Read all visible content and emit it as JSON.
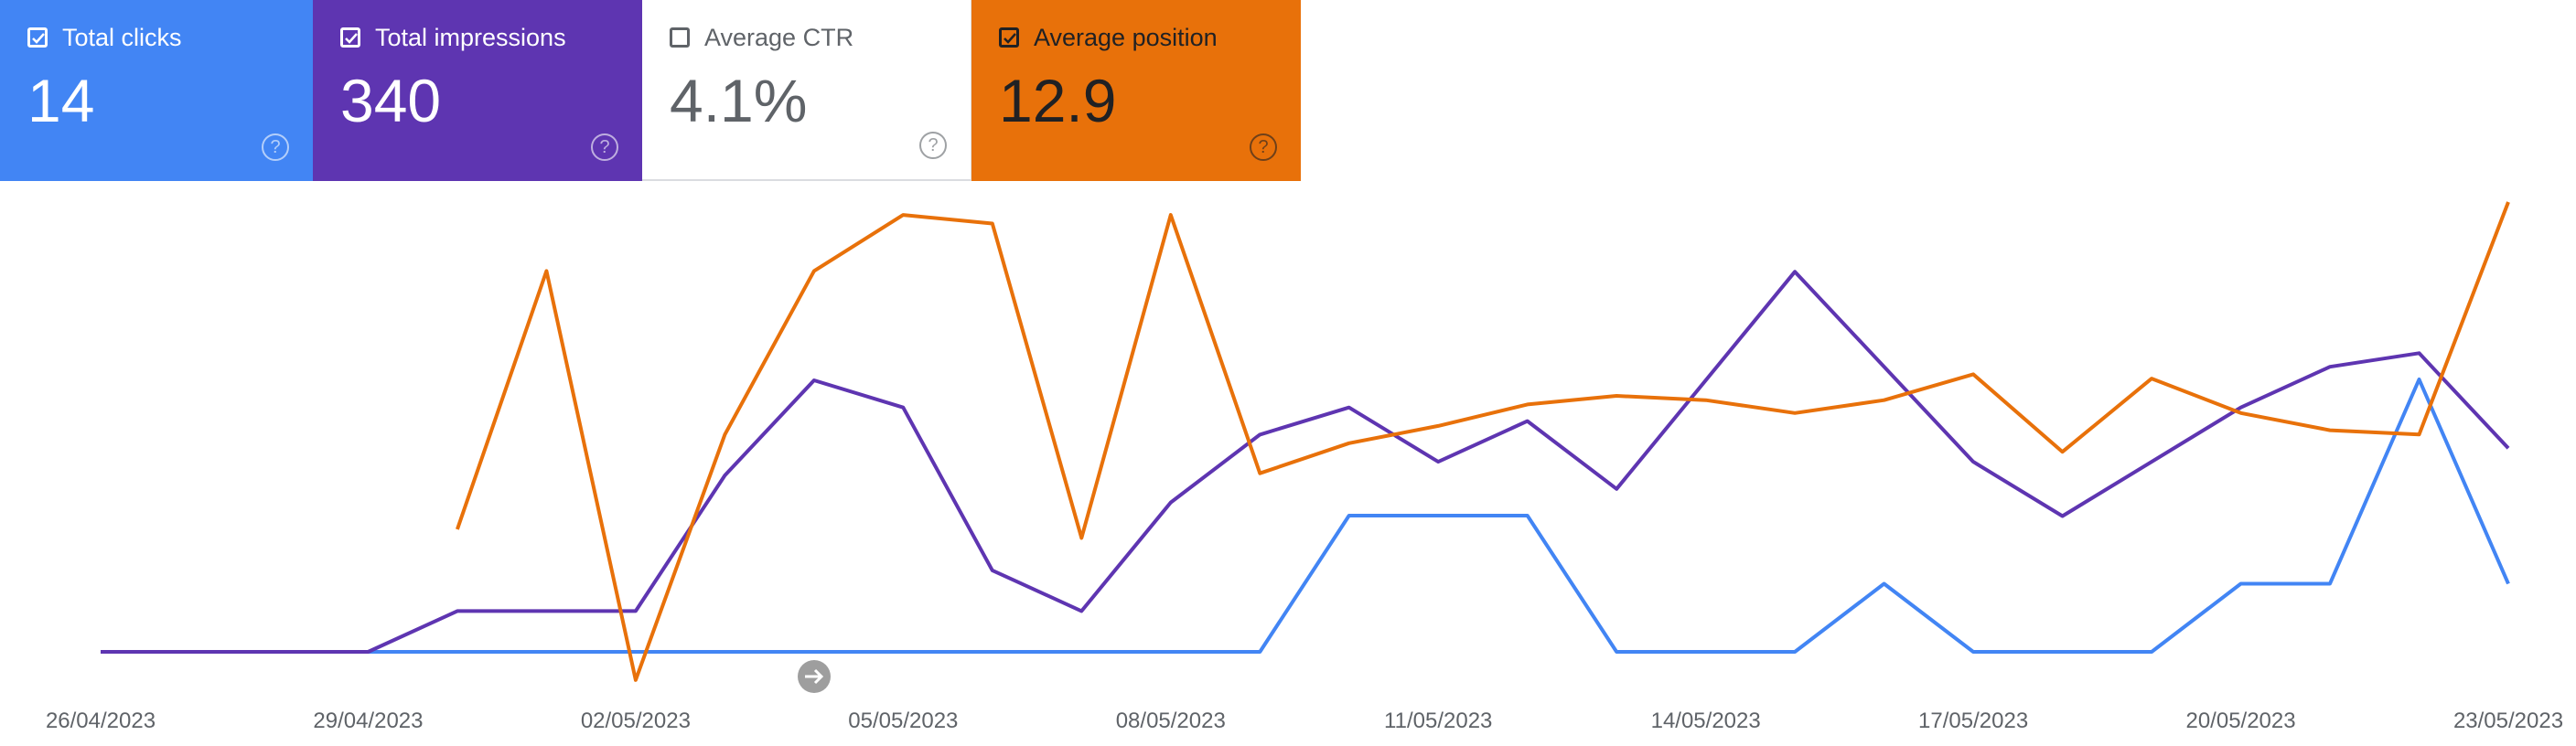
{
  "cards": [
    {
      "label": "Total clicks",
      "value": "14",
      "checked": true,
      "help": "?"
    },
    {
      "label": "Total impressions",
      "value": "340",
      "checked": true,
      "help": "?"
    },
    {
      "label": "Average CTR",
      "value": "4.1%",
      "checked": false,
      "help": "?"
    },
    {
      "label": "Average position",
      "value": "12.9",
      "checked": true,
      "help": "?"
    }
  ],
  "colors": {
    "clicks": "#4285f4",
    "impressions": "#5e35b1",
    "ctr": "#ffffff",
    "position": "#e8710a"
  },
  "annotation_icon": "arrow-right-icon",
  "chart_data": {
    "type": "line",
    "x": [
      "26/04/2023",
      "27/04/2023",
      "28/04/2023",
      "29/04/2023",
      "30/04/2023",
      "01/05/2023",
      "02/05/2023",
      "03/05/2023",
      "04/05/2023",
      "05/05/2023",
      "06/05/2023",
      "07/05/2023",
      "08/05/2023",
      "09/05/2023",
      "10/05/2023",
      "11/05/2023",
      "12/05/2023",
      "13/05/2023",
      "14/05/2023",
      "15/05/2023",
      "16/05/2023",
      "17/05/2023",
      "18/05/2023",
      "19/05/2023",
      "20/05/2023",
      "21/05/2023",
      "22/05/2023",
      "23/05/2023"
    ],
    "xticks": [
      "26/04/2023",
      "29/04/2023",
      "02/05/2023",
      "05/05/2023",
      "08/05/2023",
      "11/05/2023",
      "14/05/2023",
      "17/05/2023",
      "20/05/2023",
      "23/05/2023"
    ],
    "series": [
      {
        "key": "clicks",
        "color": "#4285f4",
        "values": [
          0,
          0,
          0,
          0,
          0,
          0,
          0,
          0,
          0,
          0,
          0,
          0,
          0,
          0,
          2,
          2,
          2,
          0,
          0,
          0,
          1,
          0,
          0,
          0,
          1,
          1,
          4,
          1
        ]
      },
      {
        "key": "impressions",
        "color": "#5e35b1",
        "values": [
          0,
          0,
          0,
          0,
          3,
          3,
          3,
          13,
          20,
          18,
          6,
          3,
          11,
          16,
          18,
          14,
          17,
          12,
          null,
          28,
          null,
          14,
          10,
          null,
          18,
          21,
          22,
          15
        ]
      },
      {
        "key": "position",
        "color": "#e8710a",
        "values": [
          null,
          null,
          null,
          null,
          10.5,
          4.5,
          14,
          8.3,
          4.5,
          3.2,
          3.4,
          10.7,
          3.2,
          9.2,
          8.5,
          8.1,
          7.6,
          7.4,
          7.5,
          7.8,
          7.5,
          6.9,
          8.7,
          7.0,
          7.8,
          8.2,
          8.3,
          2.9
        ]
      }
    ],
    "grid": false,
    "legend": "none"
  }
}
